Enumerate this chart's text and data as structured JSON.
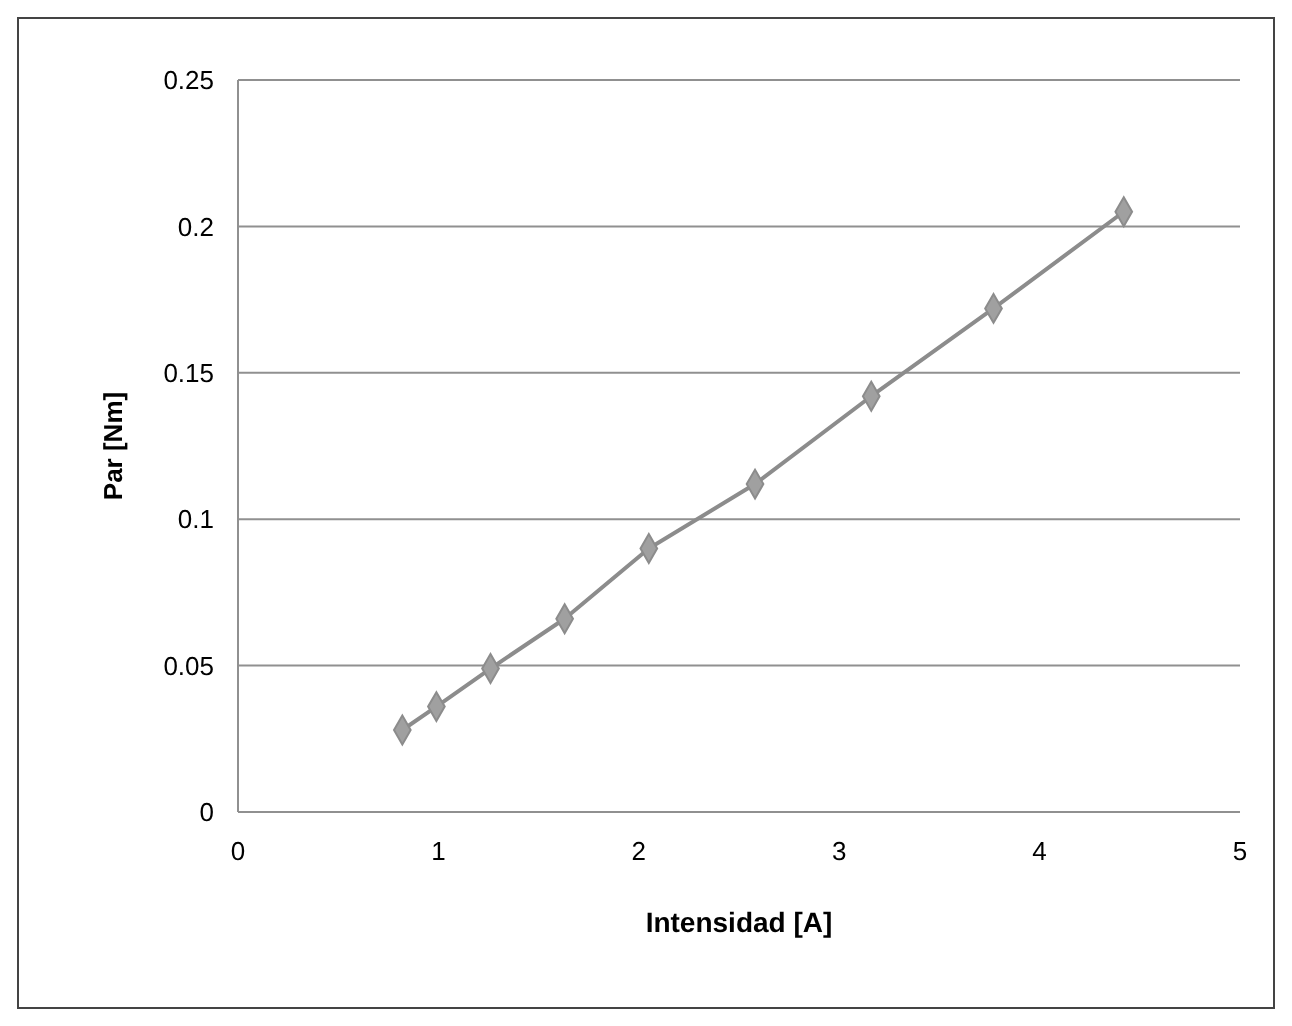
{
  "chart_data": {
    "type": "line",
    "xlabel": "Intensidad [A]",
    "ylabel": "Par [Nm]",
    "x": [
      0.82,
      0.99,
      1.26,
      1.63,
      2.05,
      2.58,
      3.16,
      3.77,
      4.42
    ],
    "series": [
      {
        "color": "#8c8c8c",
        "values": [
          0.028,
          0.036,
          0.049,
          0.066,
          0.09,
          0.112,
          0.142,
          0.172,
          0.205
        ]
      }
    ],
    "xlim": [
      0,
      5
    ],
    "xticks": [
      0,
      1,
      2,
      3,
      4,
      5
    ],
    "ylim": [
      0,
      0.25
    ],
    "yticks": [
      0,
      0.05,
      0.1,
      0.15,
      0.2,
      0.25
    ],
    "grid": "y",
    "marker": "diamond",
    "line_style": "solid"
  }
}
